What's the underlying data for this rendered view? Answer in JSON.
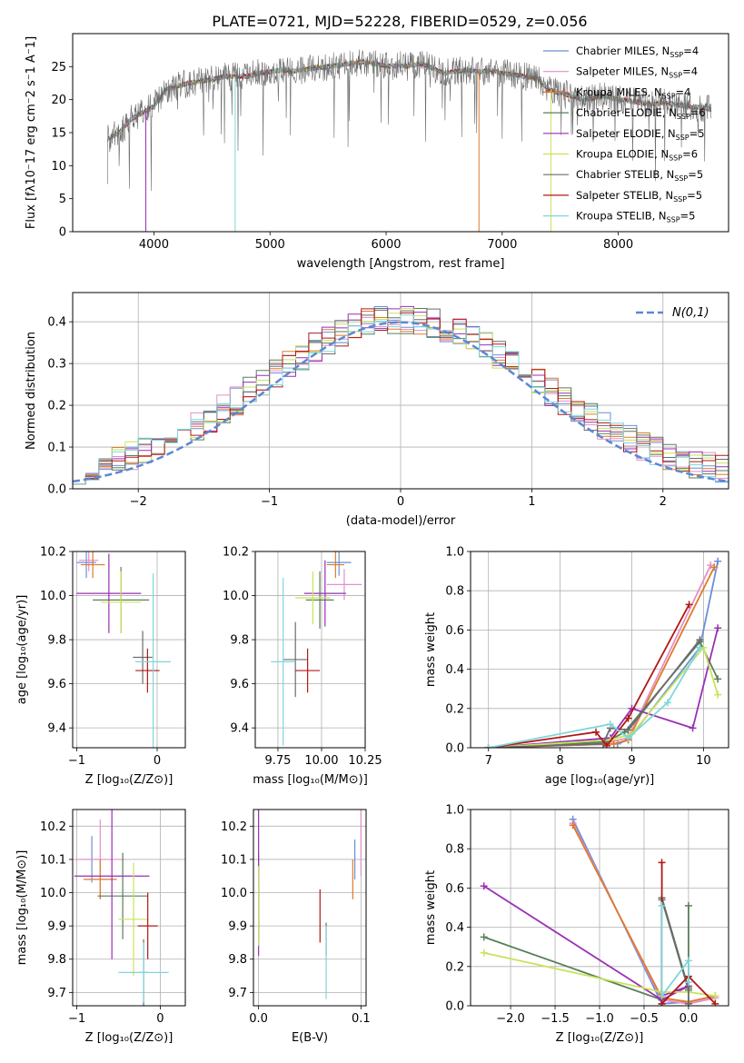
{
  "title": "PLATE=0721, MJD=52228, FIBERID=0529, z=0.056",
  "series_colors": [
    "#6b8fd6",
    "#e58fc6",
    "#e07a2a",
    "#5a7f5a",
    "#9a2fb5",
    "#c9e35a",
    "#6b6b6b",
    "#b01818",
    "#7fd6dc"
  ],
  "legend_labels": [
    "Chabrier MILES, N_SSP=4",
    "Salpeter MILES, N_SSP=4",
    "Kroupa MILES, N_SSP=4",
    "Chabrier ELODIE, N_SSP=6",
    "Salpeter ELODIE, N_SSP=5",
    "Kroupa ELODIE, N_SSP=6",
    "Chabrier STELIB, N_SSP=5",
    "Salpeter STELIB, N_SSP=5",
    "Kroupa STELIB, N_SSP=5"
  ],
  "chart_data": [
    {
      "type": "line",
      "id": "spectrum",
      "xlabel": "wavelength [Angstrom, rest frame]",
      "ylabel": "Flux [f_λ10^-17 erg cm^-2 s^-1 A^-1]",
      "xlim": [
        3300,
        8950
      ],
      "ylim": [
        0,
        30
      ],
      "xticks": [
        4000,
        5000,
        6000,
        7000,
        8000
      ],
      "yticks": [
        0,
        5,
        10,
        15,
        20,
        25
      ],
      "grid": false,
      "legend": "right",
      "x": [
        3600,
        3700,
        3800,
        3900,
        4000,
        4100,
        4200,
        4300,
        4400,
        4500,
        4600,
        4700,
        4800,
        4900,
        5000,
        5100,
        5200,
        5300,
        5400,
        5500,
        5600,
        5700,
        5800,
        5900,
        6000,
        6100,
        6200,
        6300,
        6400,
        6500,
        6600,
        6700,
        6800,
        6900,
        7000,
        7100,
        7200,
        7300,
        7400,
        7500,
        7600,
        7700,
        7800,
        7900,
        8000,
        8100,
        8200,
        8300,
        8400,
        8500,
        8600,
        8700,
        8800
      ],
      "flux": [
        14,
        15,
        17,
        18,
        19,
        21.5,
        22,
        22.5,
        22.8,
        23,
        23.5,
        23.5,
        23.5,
        24,
        24.2,
        24.5,
        24.3,
        24.6,
        24.8,
        25,
        25.2,
        25.5,
        25.7,
        25.5,
        25,
        25.2,
        25,
        25.5,
        24.8,
        24,
        24.3,
        24.5,
        24.2,
        24.4,
        24,
        23.8,
        23.5,
        23.2,
        21.5,
        21,
        20.5,
        20,
        20.3,
        20.5,
        20,
        19.8,
        19.5,
        19.3,
        19.6,
        19.2,
        19,
        18.8,
        18.5
      ]
    },
    {
      "type": "bar",
      "id": "residuals",
      "xlabel": "(data-model)/error",
      "ylabel": "Normed distribution",
      "xlim": [
        -2.5,
        2.5
      ],
      "ylim": [
        0,
        0.47
      ],
      "xticks": [
        -2,
        -1,
        0,
        1,
        2
      ],
      "yticks": [
        0.0,
        0.1,
        0.2,
        0.3,
        0.4
      ],
      "grid": true,
      "legend": "top-right",
      "gaussian_label": "N(0,1)",
      "bin_width": 0.1,
      "bin_start": -2.5
    },
    {
      "type": "scatter",
      "id": "age-vs-Z",
      "xlabel": "Z [log10(Z/Z⊙)]",
      "ylabel": "age  [log10(age/yr)]",
      "xlim": [
        -1.05,
        0.35
      ],
      "ylim": [
        9.31,
        10.2
      ],
      "xticks": [
        -1,
        0
      ],
      "yticks": [
        9.4,
        9.6,
        9.8,
        10.0,
        10.2
      ],
      "grid": true,
      "points": [
        {
          "s": 0,
          "x": -0.88,
          "y": 10.15,
          "xerr": 0.12,
          "yerr": 0.07
        },
        {
          "s": 1,
          "x": -0.85,
          "y": 10.16,
          "xerr": 0.12,
          "yerr": 0.05
        },
        {
          "s": 2,
          "x": -0.8,
          "y": 10.14,
          "xerr": 0.15,
          "yerr": 0.06
        },
        {
          "s": 3,
          "x": -0.45,
          "y": 9.98,
          "xerr": 0.35,
          "yerr": 0.15
        },
        {
          "s": 4,
          "x": -0.6,
          "y": 10.01,
          "xerr": 0.4,
          "yerr": 0.18
        },
        {
          "s": 5,
          "x": -0.45,
          "y": 9.97,
          "xerr": 0.25,
          "yerr": 0.14
        },
        {
          "s": 6,
          "x": -0.18,
          "y": 9.72,
          "xerr": 0.12,
          "yerr": 0.12
        },
        {
          "s": 7,
          "x": -0.12,
          "y": 9.66,
          "xerr": 0.15,
          "yerr": 0.1
        },
        {
          "s": 8,
          "x": -0.05,
          "y": 9.7,
          "xerr": 0.22,
          "yerr": 0.4
        }
      ]
    },
    {
      "type": "scatter",
      "id": "age-vs-mass",
      "xlabel": "mass [log10(M/M⊙)]",
      "ylabel": "",
      "xlim": [
        9.62,
        10.25
      ],
      "ylim": [
        9.31,
        10.2
      ],
      "xticks": [
        9.75,
        10.0,
        10.25
      ],
      "yticks": [
        9.4,
        9.6,
        9.8,
        10.0,
        10.2
      ],
      "grid": true,
      "points": [
        {
          "s": 0,
          "x": 10.1,
          "y": 10.15,
          "xerr": 0.07,
          "yerr": 0.06
        },
        {
          "s": 1,
          "x": 10.13,
          "y": 10.05,
          "xerr": 0.1,
          "yerr": 0.07
        },
        {
          "s": 2,
          "x": 10.08,
          "y": 10.14,
          "xerr": 0.05,
          "yerr": 0.06
        },
        {
          "s": 3,
          "x": 9.99,
          "y": 9.98,
          "xerr": 0.08,
          "yerr": 0.13
        },
        {
          "s": 4,
          "x": 10.02,
          "y": 10.01,
          "xerr": 0.12,
          "yerr": 0.15
        },
        {
          "s": 5,
          "x": 9.95,
          "y": 9.99,
          "xerr": 0.1,
          "yerr": 0.12
        },
        {
          "s": 6,
          "x": 9.85,
          "y": 9.71,
          "xerr": 0.07,
          "yerr": 0.17
        },
        {
          "s": 7,
          "x": 9.92,
          "y": 9.66,
          "xerr": 0.07,
          "yerr": 0.1
        },
        {
          "s": 8,
          "x": 9.78,
          "y": 9.7,
          "xerr": 0.07,
          "yerr": 0.38
        }
      ]
    },
    {
      "type": "line",
      "id": "mass-weight-vs-age",
      "xlabel": "age  [log10(age/yr)]",
      "ylabel": "mass weight",
      "xlim": [
        6.75,
        10.35
      ],
      "ylim": [
        0,
        1.0
      ],
      "xticks": [
        7,
        8,
        9,
        10
      ],
      "yticks": [
        0.0,
        0.2,
        0.4,
        0.6,
        0.8,
        1.0
      ],
      "grid": true,
      "series": [
        {
          "s": 0,
          "x": [
            7.0,
            8.8,
            8.95,
            9.95,
            10.2
          ],
          "y": [
            0.0,
            0.02,
            0.04,
            0.51,
            0.95
          ]
        },
        {
          "s": 1,
          "x": [
            7.0,
            8.7,
            8.95,
            10.1
          ],
          "y": [
            0.0,
            0.03,
            0.05,
            0.93
          ]
        },
        {
          "s": 2,
          "x": [
            7.0,
            8.75,
            8.95,
            10.15
          ],
          "y": [
            0.0,
            0.02,
            0.04,
            0.92
          ]
        },
        {
          "s": 3,
          "x": [
            7.0,
            8.65,
            8.9,
            9.95,
            10.2
          ],
          "y": [
            0.0,
            0.03,
            0.08,
            0.54,
            0.35
          ]
        },
        {
          "s": 4,
          "x": [
            7.0,
            8.7,
            9.0,
            9.85,
            10.2
          ],
          "y": [
            0.0,
            0.05,
            0.2,
            0.1,
            0.61
          ]
        },
        {
          "s": 5,
          "x": [
            7.0,
            8.7,
            9.0,
            10.0,
            10.2
          ],
          "y": [
            0.0,
            0.04,
            0.07,
            0.51,
            0.27
          ]
        },
        {
          "s": 6,
          "x": [
            7.0,
            8.6,
            8.7,
            8.95,
            9.95
          ],
          "y": [
            0.0,
            0.02,
            0.1,
            0.09,
            0.55
          ]
        },
        {
          "s": 7,
          "x": [
            7.0,
            8.5,
            8.65,
            8.95,
            9.8
          ],
          "y": [
            0.0,
            0.08,
            0.01,
            0.15,
            0.73
          ]
        },
        {
          "s": 8,
          "x": [
            7.0,
            8.7,
            8.95,
            9.5,
            9.95
          ],
          "y": [
            0.0,
            0.12,
            0.05,
            0.23,
            0.51
          ]
        }
      ]
    },
    {
      "type": "scatter",
      "id": "mass-vs-Z",
      "xlabel": "Z [log10(Z/Z⊙)]",
      "ylabel": "mass [log10(M/M⊙)]",
      "xlim": [
        -1.05,
        0.3
      ],
      "ylim": [
        9.66,
        10.25
      ],
      "xticks": [
        -1,
        0
      ],
      "yticks": [
        9.7,
        9.8,
        9.9,
        10.0,
        10.1,
        10.2
      ],
      "grid": true,
      "points": [
        {
          "s": 0,
          "x": -0.82,
          "y": 10.1,
          "xerr": 0.12,
          "yerr": 0.07
        },
        {
          "s": 1,
          "x": -0.72,
          "y": 10.1,
          "xerr": 0.3,
          "yerr": 0.12
        },
        {
          "s": 2,
          "x": -0.72,
          "y": 10.04,
          "xerr": 0.2,
          "yerr": 0.06
        },
        {
          "s": 3,
          "x": -0.45,
          "y": 9.99,
          "xerr": 0.3,
          "yerr": 0.13
        },
        {
          "s": 4,
          "x": -0.58,
          "y": 10.05,
          "xerr": 0.45,
          "yerr": 0.25
        },
        {
          "s": 5,
          "x": -0.32,
          "y": 9.92,
          "xerr": 0.18,
          "yerr": 0.17
        },
        {
          "s": 6,
          "x": -0.2,
          "y": 9.76,
          "xerr": 0.05,
          "yerr": 0.1
        },
        {
          "s": 7,
          "x": -0.15,
          "y": 9.9,
          "xerr": 0.12,
          "yerr": 0.1
        },
        {
          "s": 8,
          "x": -0.2,
          "y": 9.76,
          "xerr": 0.3,
          "yerr": 0.09
        }
      ]
    },
    {
      "type": "scatter",
      "id": "mass-vs-EBV",
      "xlabel": "E(B-V)",
      "ylabel": "",
      "xlim": [
        -0.005,
        0.105
      ],
      "ylim": [
        9.66,
        10.25
      ],
      "xticks": [
        0.0,
        0.1
      ],
      "yticks": [
        9.7,
        9.8,
        9.9,
        10.0,
        10.1,
        10.2
      ],
      "grid": true,
      "points": [
        {
          "s": 0,
          "x": 0.094,
          "y": 10.1,
          "xerr": 0,
          "yerr": 0.06
        },
        {
          "s": 1,
          "x": 0.1,
          "y": 10.15,
          "xerr": 0,
          "yerr": 0.1
        },
        {
          "s": 2,
          "x": 0.092,
          "y": 10.04,
          "xerr": 0,
          "yerr": 0.06
        },
        {
          "s": 3,
          "x": 0.0,
          "y": 9.99,
          "xerr": 0,
          "yerr": 0.13
        },
        {
          "s": 4,
          "x": 0.0,
          "y": 10.05,
          "xerr": 0,
          "yerr": 0.24
        },
        {
          "s": 5,
          "x": 0.0,
          "y": 9.96,
          "xerr": 0,
          "yerr": 0.12
        },
        {
          "s": 6,
          "x": 0.066,
          "y": 9.86,
          "xerr": 0,
          "yerr": 0.05
        },
        {
          "s": 7,
          "x": 0.06,
          "y": 9.93,
          "xerr": 0,
          "yerr": 0.08
        },
        {
          "s": 8,
          "x": 0.066,
          "y": 9.79,
          "xerr": 0,
          "yerr": 0.11
        }
      ]
    },
    {
      "type": "line",
      "id": "mass-weight-vs-Z",
      "xlabel": "Z [log10(Z/Z⊙)]",
      "ylabel": "mass weight",
      "xlim": [
        -2.45,
        0.45
      ],
      "ylim": [
        0,
        1.0
      ],
      "xticks": [
        -2.0,
        -1.5,
        -1.0,
        -0.5,
        0.0
      ],
      "yticks": [
        0.0,
        0.2,
        0.4,
        0.6,
        0.8,
        1.0
      ],
      "grid": true,
      "series": [
        {
          "s": 0,
          "x": [
            -1.3,
            -0.3,
            0.0,
            0.3
          ],
          "y": [
            0.95,
            0.01,
            0.02,
            0.05
          ]
        },
        {
          "s": 1,
          "x": [
            -1.3,
            -0.3,
            0.0,
            0.3
          ],
          "y": [
            0.93,
            0.03,
            0.01,
            0.04
          ]
        },
        {
          "s": 2,
          "x": [
            -1.3,
            -0.3,
            0.0,
            0.3
          ],
          "y": [
            0.92,
            0.04,
            0.02,
            0.05
          ]
        },
        {
          "s": 3,
          "x": [
            -2.3,
            -0.3,
            -0.3,
            0.0,
            0.0
          ],
          "y": [
            0.35,
            0.03,
            0.54,
            0.08,
            0.51
          ]
        },
        {
          "s": 4,
          "x": [
            -2.3,
            -0.3,
            0.0,
            -0.3
          ],
          "y": [
            0.61,
            0.03,
            0.1,
            0.05
          ]
        },
        {
          "s": 5,
          "x": [
            -2.3,
            -0.3,
            0.0,
            0.3
          ],
          "y": [
            0.27,
            0.07,
            0.07,
            0.05
          ]
        },
        {
          "s": 6,
          "x": [
            -0.3,
            -0.3,
            0.0,
            0.0
          ],
          "y": [
            0.01,
            0.55,
            0.09,
            0.01
          ]
        },
        {
          "s": 7,
          "x": [
            -0.3,
            -0.3,
            0.0,
            0.3
          ],
          "y": [
            0.73,
            0.01,
            0.15,
            0.01
          ]
        },
        {
          "s": 8,
          "x": [
            -0.3,
            -0.3,
            0.0,
            0.0
          ],
          "y": [
            0.51,
            0.05,
            0.23,
            0.12
          ]
        }
      ]
    }
  ]
}
